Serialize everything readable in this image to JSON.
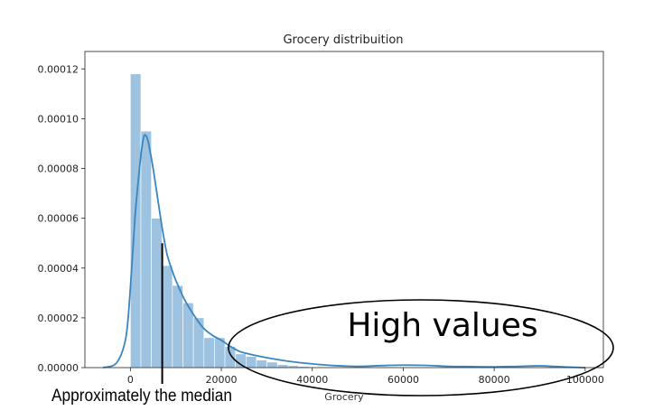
{
  "chart_data": {
    "type": "histogram",
    "title": "Grocery distribuition",
    "xlabel": "Grocery",
    "ylabel": "",
    "xlim": [
      -10000,
      104000
    ],
    "ylim": [
      0,
      0.000127
    ],
    "grid": false,
    "x_ticks": [
      0,
      20000,
      40000,
      60000,
      80000,
      100000
    ],
    "x_tick_labels": [
      "0",
      "20000",
      "40000",
      "60000",
      "80000",
      "100000"
    ],
    "y_ticks": [
      0,
      2e-05,
      4e-05,
      6e-05,
      8e-05,
      0.0001,
      0.00012
    ],
    "y_tick_labels": [
      "0.00000",
      "0.00002",
      "0.00004",
      "0.00006",
      "0.00008",
      "0.00010",
      "0.00012"
    ],
    "bar_color": "#9dc3e0",
    "line_color": "#3a86c2",
    "bins": [
      {
        "x0": 0,
        "x1": 2310,
        "value": 0.000118
      },
      {
        "x0": 2310,
        "x1": 4620,
        "value": 9.5e-05
      },
      {
        "x0": 4620,
        "x1": 6930,
        "value": 6e-05
      },
      {
        "x0": 6930,
        "x1": 9240,
        "value": 4.1e-05
      },
      {
        "x0": 9240,
        "x1": 11550,
        "value": 3.3e-05
      },
      {
        "x0": 11550,
        "x1": 13860,
        "value": 2.6e-05
      },
      {
        "x0": 13860,
        "x1": 16170,
        "value": 2e-05
      },
      {
        "x0": 16170,
        "x1": 18480,
        "value": 1.2e-05
      },
      {
        "x0": 18480,
        "x1": 20790,
        "value": 1.2e-05
      },
      {
        "x0": 20790,
        "x1": 23100,
        "value": 8.5e-06
      },
      {
        "x0": 23100,
        "x1": 25410,
        "value": 5.5e-06
      },
      {
        "x0": 25410,
        "x1": 27720,
        "value": 4.5e-06
      },
      {
        "x0": 27720,
        "x1": 30030,
        "value": 3e-06
      },
      {
        "x0": 30030,
        "x1": 32340,
        "value": 2.2e-06
      },
      {
        "x0": 32340,
        "x1": 34650,
        "value": 1.2e-06
      },
      {
        "x0": 34650,
        "x1": 36960,
        "value": 8e-07
      },
      {
        "x0": 36960,
        "x1": 39270,
        "value": 5e-07
      }
    ],
    "kde": {
      "x": [
        -6000,
        -3000,
        -1000,
        0,
        1000,
        2000,
        2500,
        3000,
        3500,
        4000,
        5000,
        6000,
        7000,
        8000,
        9000,
        10000,
        12000,
        14000,
        16000,
        18000,
        20000,
        22000,
        24000,
        26000,
        30000,
        35000,
        40000,
        45000,
        50000,
        55000,
        60000,
        65000,
        70000,
        75000,
        80000,
        85000,
        90000,
        95000,
        100000
      ],
      "y": [
        0,
        2e-06,
        1.2e-05,
        3.2e-05,
        6e-05,
        8e-05,
        8.8e-05,
        9.3e-05,
        9.3e-05,
        9e-05,
        8e-05,
        6.8e-05,
        5.6e-05,
        4.6e-05,
        4e-05,
        3.5e-05,
        2.7e-05,
        2.1e-05,
        1.6e-05,
        1.3e-05,
        1.1e-05,
        8.5e-06,
        6.5e-06,
        5.5e-06,
        4e-06,
        2.5e-06,
        1.5e-06,
        8e-07,
        5e-07,
        8e-07,
        1e-06,
        9e-07,
        5e-07,
        4e-07,
        3e-07,
        5e-07,
        7e-07,
        3e-07,
        0
      ]
    },
    "annotations": {
      "median_label": "Approximately the median",
      "median_x": 7000,
      "median_y": 5e-05,
      "high_values_label": "High values"
    }
  }
}
